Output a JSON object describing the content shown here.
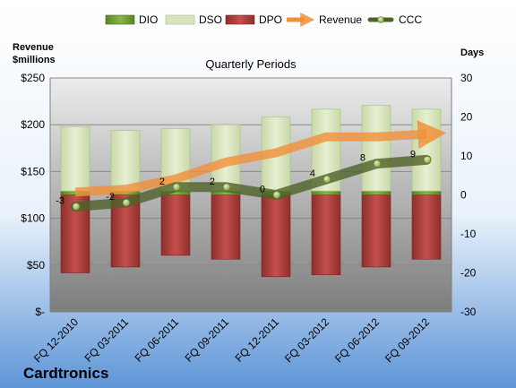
{
  "chart_data": {
    "type": "bar",
    "title": "Quarterly Periods",
    "brand": "Cardtronics",
    "categories": [
      "FQ 12-2010",
      "FQ 03-2011",
      "FQ 06-2011",
      "FQ 09-2011",
      "FQ 12-2011",
      "FQ 03-2012",
      "FQ 06-2012",
      "FQ 09-2012"
    ],
    "y_left": {
      "label_line1": "Revenue",
      "label_line2": "$millions",
      "range": [
        0,
        250
      ],
      "ticks": [
        0,
        50,
        100,
        150,
        200,
        250
      ],
      "tick_labels": [
        "$-",
        "$50",
        "$100",
        "$150",
        "$200",
        "$250"
      ]
    },
    "y_right": {
      "label": "Days",
      "range": [
        -30,
        30
      ],
      "ticks": [
        -30,
        -20,
        -10,
        0,
        10,
        20,
        30
      ],
      "tick_labels": [
        "-30",
        "-20",
        "-10",
        "0",
        "10",
        "20",
        "30"
      ]
    },
    "series": [
      {
        "name": "DIO",
        "axis": "right",
        "values": [
          1,
          1,
          1,
          1,
          1,
          1,
          1,
          1
        ],
        "color": "#6e9a32"
      },
      {
        "name": "DSO",
        "axis": "right",
        "values": [
          16.5,
          15.5,
          16,
          17,
          19,
          21,
          22,
          21
        ],
        "color": "#d7e4bd"
      },
      {
        "name": "DPO",
        "axis": "right",
        "values": [
          -20,
          -18.5,
          -15.5,
          -16.5,
          -21,
          -20.5,
          -18.5,
          -16.5
        ],
        "color": "#c0504d"
      },
      {
        "name": "Revenue",
        "axis": "left",
        "values": [
          128,
          131,
          142,
          160,
          170,
          187,
          187,
          190
        ],
        "color": "#f4a460"
      },
      {
        "name": "CCC",
        "axis": "right",
        "values": [
          -3,
          -2,
          2,
          2,
          0,
          4,
          8,
          9
        ],
        "labels": [
          "-3",
          "-2",
          "2",
          "2",
          "0",
          "4",
          "8",
          "9"
        ],
        "color": "#4f6228"
      }
    ],
    "legend_position": "top",
    "grid": true
  }
}
